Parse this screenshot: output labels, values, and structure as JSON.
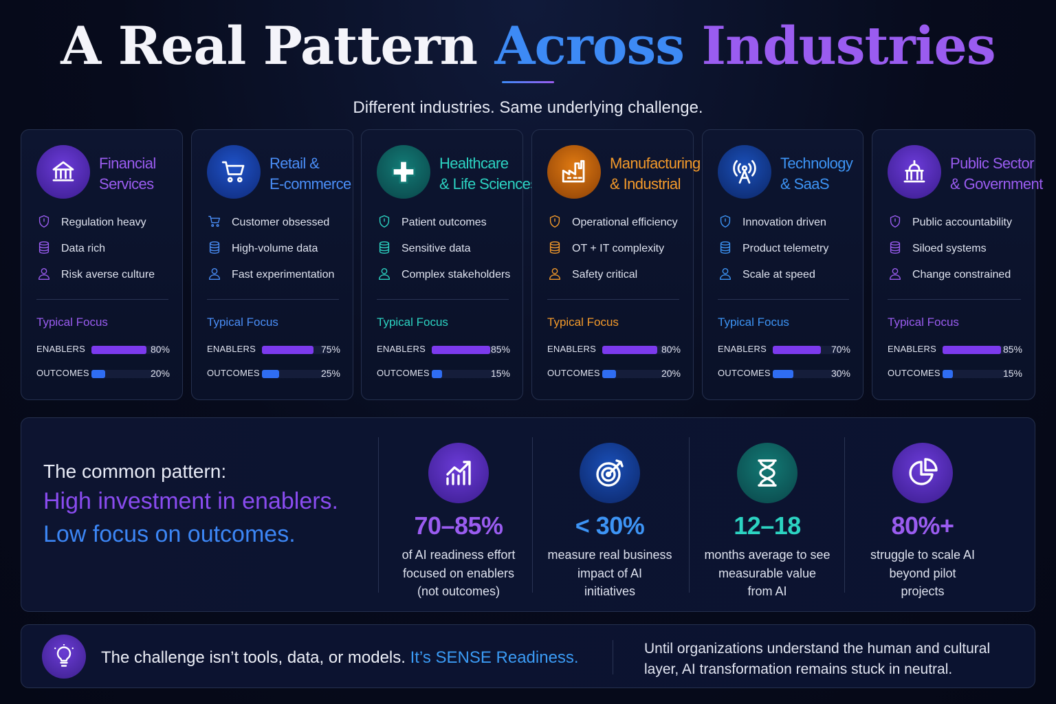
{
  "header": {
    "title_part1": "A Real Pattern",
    "title_part2": "Across",
    "title_part3": "Industries",
    "subtitle": "Different industries. Same underlying challenge."
  },
  "colors": {
    "enablers_bar": "#7c3aed",
    "outcomes_bar": "#2f6df2",
    "track": "#151d3a"
  },
  "industries": [
    {
      "name_line1": "Financial",
      "name_line2": "Services",
      "accent": "#9a5cf0",
      "icon": "bank-icon",
      "traits": [
        {
          "icon": "shield-icon",
          "label": "Regulation heavy"
        },
        {
          "icon": "database-icon",
          "label": "Data rich"
        },
        {
          "icon": "user-icon",
          "label": "Risk averse culture"
        }
      ],
      "focus_title": "Typical Focus",
      "enablers_label": "ENABLERS",
      "enablers_pct": 80,
      "enablers_text": "80%",
      "outcomes_label": "OUTCOMES",
      "outcomes_pct": 20,
      "outcomes_text": "20%"
    },
    {
      "name_line1": "Retail &",
      "name_line2": "E-commerce",
      "accent": "#4a8ef7",
      "icon": "cart-icon",
      "traits": [
        {
          "icon": "cart-icon",
          "label": "Customer obsessed"
        },
        {
          "icon": "database-icon",
          "label": "High-volume data"
        },
        {
          "icon": "user-icon",
          "label": "Fast experimentation"
        }
      ],
      "focus_title": "Typical Focus",
      "enablers_label": "ENABLERS",
      "enablers_pct": 75,
      "enablers_text": "75%",
      "outcomes_label": "OUTCOMES",
      "outcomes_pct": 25,
      "outcomes_text": "25%"
    },
    {
      "name_line1": "Healthcare",
      "name_line2": "& Life Sciences",
      "accent": "#2cd3c2",
      "icon": "medical-cross-icon",
      "traits": [
        {
          "icon": "shield-icon",
          "label": "Patient outcomes"
        },
        {
          "icon": "database-icon",
          "label": "Sensitive data"
        },
        {
          "icon": "user-icon",
          "label": "Complex stakeholders"
        }
      ],
      "focus_title": "Typical Focus",
      "enablers_label": "ENABLERS",
      "enablers_pct": 85,
      "enablers_text": "85%",
      "outcomes_label": "OUTCOMES",
      "outcomes_pct": 15,
      "outcomes_text": "15%"
    },
    {
      "name_line1": "Manufacturing",
      "name_line2": "& Industrial",
      "accent": "#f49a2a",
      "icon": "factory-icon",
      "traits": [
        {
          "icon": "shield-icon",
          "label": "Operational efficiency"
        },
        {
          "icon": "database-icon",
          "label": "OT + IT complexity"
        },
        {
          "icon": "user-icon",
          "label": "Safety critical"
        }
      ],
      "focus_title": "Typical Focus",
      "enablers_label": "ENABLERS",
      "enablers_pct": 80,
      "enablers_text": "80%",
      "outcomes_label": "OUTCOMES",
      "outcomes_pct": 20,
      "outcomes_text": "20%"
    },
    {
      "name_line1": "Technology",
      "name_line2": "& SaaS",
      "accent": "#3d94f5",
      "icon": "antenna-icon",
      "traits": [
        {
          "icon": "shield-icon",
          "label": "Innovation driven"
        },
        {
          "icon": "database-icon",
          "label": "Product telemetry"
        },
        {
          "icon": "user-icon",
          "label": "Scale at speed"
        }
      ],
      "focus_title": "Typical Focus",
      "enablers_label": "ENABLERS",
      "enablers_pct": 70,
      "enablers_text": "70%",
      "outcomes_label": "OUTCOMES",
      "outcomes_pct": 30,
      "outcomes_text": "30%"
    },
    {
      "name_line1": "Public Sector",
      "name_line2": "& Government",
      "accent": "#9a5cf0",
      "icon": "capitol-icon",
      "traits": [
        {
          "icon": "shield-icon",
          "label": "Public accountability"
        },
        {
          "icon": "database-icon",
          "label": "Siloed systems"
        },
        {
          "icon": "user-icon",
          "label": "Change constrained"
        }
      ],
      "focus_title": "Typical Focus",
      "enablers_label": "ENABLERS",
      "enablers_pct": 85,
      "enablers_text": "85%",
      "outcomes_label": "OUTCOMES",
      "outcomes_pct": 15,
      "outcomes_text": "15%"
    }
  ],
  "pattern": {
    "lead": "The common pattern:",
    "line1": "High investment in enablers.",
    "line2": "Low focus on outcomes."
  },
  "stats": [
    {
      "icon": "growth-chart-icon",
      "value": "70–85%",
      "color": "#9a5cf0",
      "desc": [
        "of AI readiness effort",
        "focused on enablers",
        "(not outcomes)"
      ]
    },
    {
      "icon": "target-icon",
      "value": "< 30%",
      "color": "#3d94f5",
      "desc": [
        "measure real business",
        "impact of AI",
        "initiatives"
      ]
    },
    {
      "icon": "hourglass-icon",
      "value": "12–18",
      "color": "#2cd3c2",
      "desc": [
        "months average to see",
        "measurable value",
        "from AI"
      ]
    },
    {
      "icon": "pie-chart-icon",
      "value": "80%+",
      "color": "#9a5cf0",
      "desc": [
        "struggle to scale AI",
        "beyond pilot",
        "projects"
      ]
    }
  ],
  "challenge": {
    "icon": "lightbulb-icon",
    "text": "The challenge isn’t tools, data, or models.",
    "highlight": "It’s SENSE Readiness.",
    "note_line1": "Until organizations understand the human and cultural",
    "note_line2": "layer, AI transformation remains stuck in neutral."
  }
}
